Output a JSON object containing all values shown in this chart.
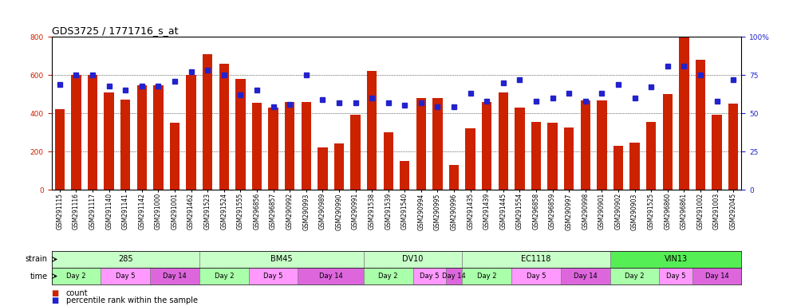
{
  "title": "GDS3725 / 1771716_s_at",
  "samples": [
    "GSM291115",
    "GSM291116",
    "GSM291117",
    "GSM291140",
    "GSM291141",
    "GSM291142",
    "GSM291000",
    "GSM291001",
    "GSM291462",
    "GSM291523",
    "GSM291524",
    "GSM291555",
    "GSM296856",
    "GSM296857",
    "GSM290992",
    "GSM290993",
    "GSM290989",
    "GSM290990",
    "GSM290991",
    "GSM291538",
    "GSM291539",
    "GSM291540",
    "GSM290994",
    "GSM290995",
    "GSM290996",
    "GSM291435",
    "GSM291439",
    "GSM291445",
    "GSM291554",
    "GSM296858",
    "GSM296859",
    "GSM290997",
    "GSM290998",
    "GSM290901",
    "GSM290902",
    "GSM290903",
    "GSM291525",
    "GSM296860",
    "GSM296861",
    "GSM291002",
    "GSM291003",
    "GSM292045"
  ],
  "counts": [
    420,
    600,
    600,
    510,
    470,
    545,
    545,
    350,
    600,
    710,
    660,
    580,
    455,
    430,
    460,
    460,
    220,
    240,
    390,
    620,
    300,
    150,
    480,
    480,
    130,
    320,
    460,
    510,
    430,
    355,
    350,
    325,
    465,
    465,
    230,
    245,
    355,
    500,
    860,
    680,
    390,
    450
  ],
  "percentiles": [
    69,
    75,
    75,
    68,
    65,
    68,
    68,
    71,
    77,
    78,
    75,
    62,
    65,
    54,
    56,
    75,
    59,
    57,
    57,
    60,
    57,
    55,
    57,
    54,
    54,
    63,
    58,
    70,
    72,
    58,
    60,
    63,
    58,
    63,
    69,
    60,
    67,
    81,
    81,
    75,
    58,
    72
  ],
  "strains": [
    {
      "label": "285",
      "start": 0,
      "end": 8
    },
    {
      "label": "BM45",
      "start": 9,
      "end": 18
    },
    {
      "label": "DV10",
      "start": 19,
      "end": 24
    },
    {
      "label": "EC1118",
      "start": 25,
      "end": 33
    },
    {
      "label": "VIN13",
      "start": 34,
      "end": 41
    }
  ],
  "time_groups": [
    {
      "label": "Day 2",
      "start": 0,
      "end": 2
    },
    {
      "label": "Day 5",
      "start": 3,
      "end": 5
    },
    {
      "label": "Day 14",
      "start": 6,
      "end": 8
    },
    {
      "label": "Day 2",
      "start": 9,
      "end": 11
    },
    {
      "label": "Day 5",
      "start": 12,
      "end": 14
    },
    {
      "label": "Day 14",
      "start": 15,
      "end": 18
    },
    {
      "label": "Day 2",
      "start": 19,
      "end": 21
    },
    {
      "label": "Day 5",
      "start": 22,
      "end": 23
    },
    {
      "label": "Day 14",
      "start": 24,
      "end": 24
    },
    {
      "label": "Day 2",
      "start": 25,
      "end": 27
    },
    {
      "label": "Day 5",
      "start": 28,
      "end": 30
    },
    {
      "label": "Day 14",
      "start": 31,
      "end": 33
    },
    {
      "label": "Day 2",
      "start": 34,
      "end": 36
    },
    {
      "label": "Day 5",
      "start": 37,
      "end": 38
    },
    {
      "label": "Day 14",
      "start": 39,
      "end": 41
    }
  ],
  "bar_color": "#CC2200",
  "dot_color": "#2222CC",
  "left_ylim": [
    0,
    800
  ],
  "right_ylim": [
    0,
    100
  ],
  "left_yticks": [
    0,
    200,
    400,
    600,
    800
  ],
  "right_yticks": [
    0,
    25,
    50,
    75,
    100
  ],
  "right_yticklabels": [
    "0",
    "25",
    "50",
    "75",
    "100%"
  ],
  "bg_color": "#FFFFFF",
  "title_fontsize": 9,
  "tick_fontsize": 5.5,
  "strain_colors": [
    "#C8FFC8",
    "#C8FFC8",
    "#C8FFC8",
    "#C8FFC8",
    "#55EE55"
  ],
  "time_color_day2": "#AAFFAA",
  "time_color_day5": "#FF99FF",
  "time_color_day14": "#DD66DD"
}
